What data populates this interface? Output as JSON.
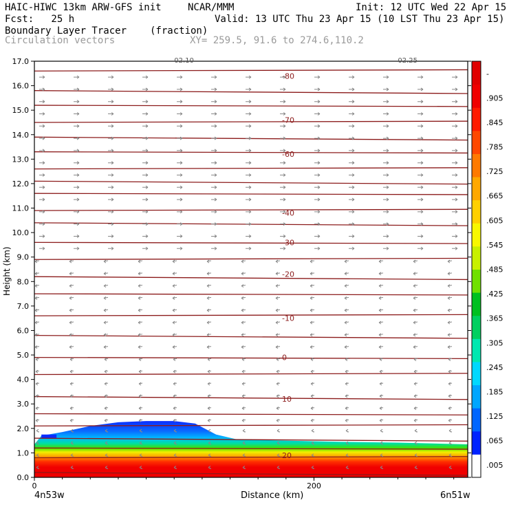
{
  "header": {
    "model": "HAIC-HIWC 13km ARW-GFS init",
    "org": "NCAR/MMM",
    "init": "Init: 12 UTC Wed 22 Apr 15",
    "fcst": "Fcst:   25 h",
    "valid": "Valid: 13 UTC Thu 23 Apr 15 (10 LST Thu 23 Apr 15)",
    "field": "Boundary Layer Tracer",
    "units": "(fraction)",
    "overlay": "Circulation vectors",
    "xy": "XY= 259.5, 91.6 to 274.6,110.2"
  },
  "chart_data": {
    "type": "heatmap",
    "xlabel": "Distance (km)",
    "ylabel": "Height (km)",
    "xlim": [
      0,
      310
    ],
    "ylim": [
      0,
      17
    ],
    "x_ticks": [
      0,
      200
    ],
    "x_endpoints": [
      "4n53w",
      "6n51w"
    ],
    "top_markers": [
      "02.10",
      "02.25"
    ],
    "y_ticks": [
      "0.0",
      "1.0",
      "2.0",
      "3.0",
      "4.0",
      "5.0",
      "6.0",
      "7.0",
      "8.0",
      "9.0",
      "10.0",
      "11.0",
      "12.0",
      "13.0",
      "14.0",
      "15.0",
      "16.0",
      "17.0"
    ],
    "colorbar": {
      "labels": [
        ".005",
        ".065",
        ".125",
        ".185",
        ".245",
        ".305",
        ".365",
        ".425",
        ".485",
        ".545",
        ".605",
        ".665",
        ".725",
        ".785",
        ".845",
        ".905",
        "-"
      ],
      "colors": [
        "#ffffff",
        "#0022ff",
        "#0066ff",
        "#00a6ff",
        "#00d8ff",
        "#00e8b0",
        "#00d060",
        "#00c020",
        "#70e000",
        "#c8f000",
        "#f8f800",
        "#ffd000",
        "#ffa800",
        "#ff7a00",
        "#ff4800",
        "#ff1a00",
        "#f00000",
        "#e00000"
      ]
    },
    "isotherm_labels": [
      "-80",
      "-70",
      "-60",
      "-40",
      "-30",
      "-20",
      "-10",
      "0",
      "10",
      "20"
    ],
    "isotherm_label_heights_km": [
      16.4,
      14.6,
      13.2,
      10.8,
      9.6,
      8.3,
      6.5,
      4.9,
      3.2,
      0.9
    ],
    "tracer_top_km": [
      [
        5,
        1.7
      ],
      [
        20,
        1.85
      ],
      [
        40,
        2.1
      ],
      [
        60,
        2.25
      ],
      [
        80,
        2.3
      ],
      [
        100,
        2.3
      ],
      [
        115,
        2.2
      ],
      [
        130,
        1.75
      ],
      [
        145,
        1.55
      ],
      [
        180,
        1.5
      ],
      [
        220,
        1.45
      ],
      [
        260,
        1.42
      ],
      [
        310,
        1.35
      ]
    ],
    "grid": false
  }
}
